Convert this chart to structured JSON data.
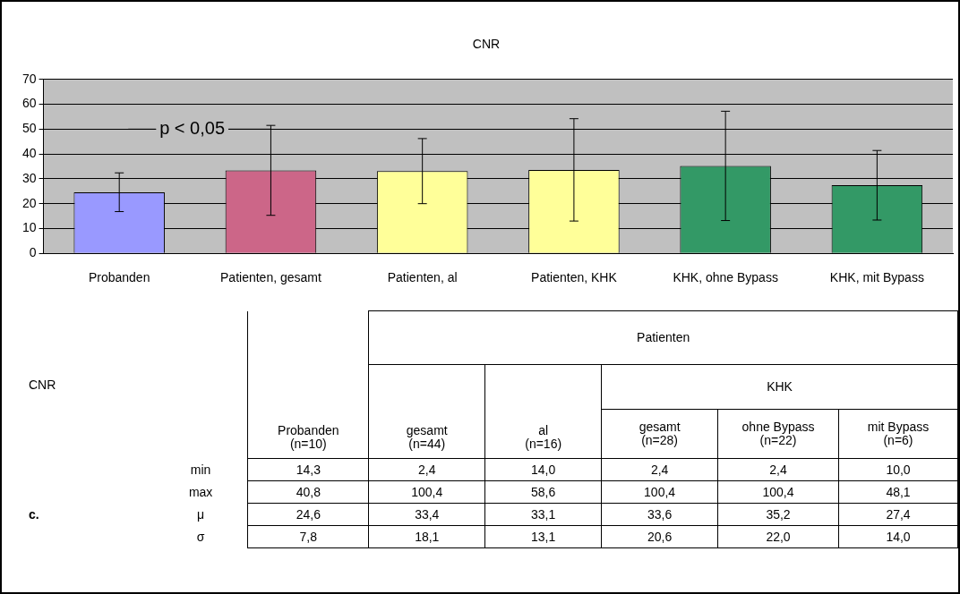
{
  "chart_data": {
    "type": "bar",
    "title": "CNR",
    "categories": [
      "Probanden",
      "Patienten, gesamt",
      "Patienten, al",
      "Patienten, KHK",
      "KHK, ohne Bypass",
      "KHK, mit Bypass"
    ],
    "values": [
      24.6,
      33.4,
      33.1,
      33.6,
      35.2,
      27.4
    ],
    "errors": [
      7.8,
      18.1,
      13.1,
      20.6,
      22.0,
      14.0
    ],
    "colors": [
      "#9999ff",
      "#cc6688",
      "#ffff99",
      "#ffff99",
      "#339966",
      "#339966"
    ],
    "ylim": [
      0,
      70
    ],
    "yticks": [
      0,
      10,
      20,
      30,
      40,
      50,
      60,
      70
    ],
    "grid": "y",
    "legend": false,
    "annotations": [
      "CNR",
      "Patienten",
      "KHK",
      "Probanden\n(n=10)",
      "gesamt\n(n=44)",
      "al\n(n=16)",
      "gesamt\n(n=28)",
      "ohne Bypass\n(n=22)",
      "mit Bypass\n(n=6)",
      "min",
      "14,3",
      "2,4",
      "14,0",
      "2,4",
      "2,4",
      "10,0",
      "max",
      "40,8",
      "100,4",
      "58,6",
      "100,4",
      "100,4",
      "48,1",
      "μ",
      "σ",
      "c.",
      {
        "text": "p < 0,05",
        "x": "Patienten, gesamt",
        "y": 50
      },
      "24,6",
      "33,4",
      "33,1",
      "33,6",
      "35,2",
      "27,4",
      "7,8",
      "18,1",
      "13,1",
      "20,6",
      "22,0",
      "14,0"
    ]
  }
}
